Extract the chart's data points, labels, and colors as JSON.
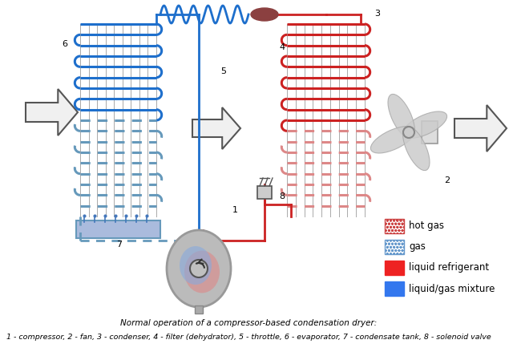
{
  "title1": "Normal operation of a compressor-based condensation dryer:",
  "title2": "1 - compressor, 2 - fan, 3 - condenser, 4 - filter (dehydrator), 5 - throttle, 6 - evaporator, 7 - condensate tank, 8 - solenoid valve",
  "legend": [
    {
      "label": "hot gas",
      "facecolor": "#ffffff",
      "edgecolor": "#cc4444",
      "hatch": "oooo"
    },
    {
      "label": "gas",
      "facecolor": "#ffffff",
      "edgecolor": "#6699cc",
      "hatch": "oooo"
    },
    {
      "label": "liquid refrigerant",
      "facecolor": "#ee2222",
      "edgecolor": "#ee2222",
      "hatch": ""
    },
    {
      "label": "liquid/gas mixture",
      "facecolor": "#3377ee",
      "edgecolor": "#3377ee",
      "hatch": ""
    }
  ],
  "bg_color": "#ffffff",
  "evap_blue": "#1e6fcc",
  "evap_gas": "#6699bb",
  "cond_red": "#cc2222",
  "cond_pink": "#dd8888",
  "pipe_blue": "#1e6fcc",
  "pipe_red": "#cc2222",
  "pipe_gas": "#6699bb",
  "fin_color": "#aaaaaa",
  "arrow_face": "#f0f0f0",
  "arrow_edge": "#555555",
  "comp_outer": "#999999",
  "comp_face": "#bbbbbb",
  "fan_blade": "#cccccc",
  "filter_color": "#8b4040"
}
